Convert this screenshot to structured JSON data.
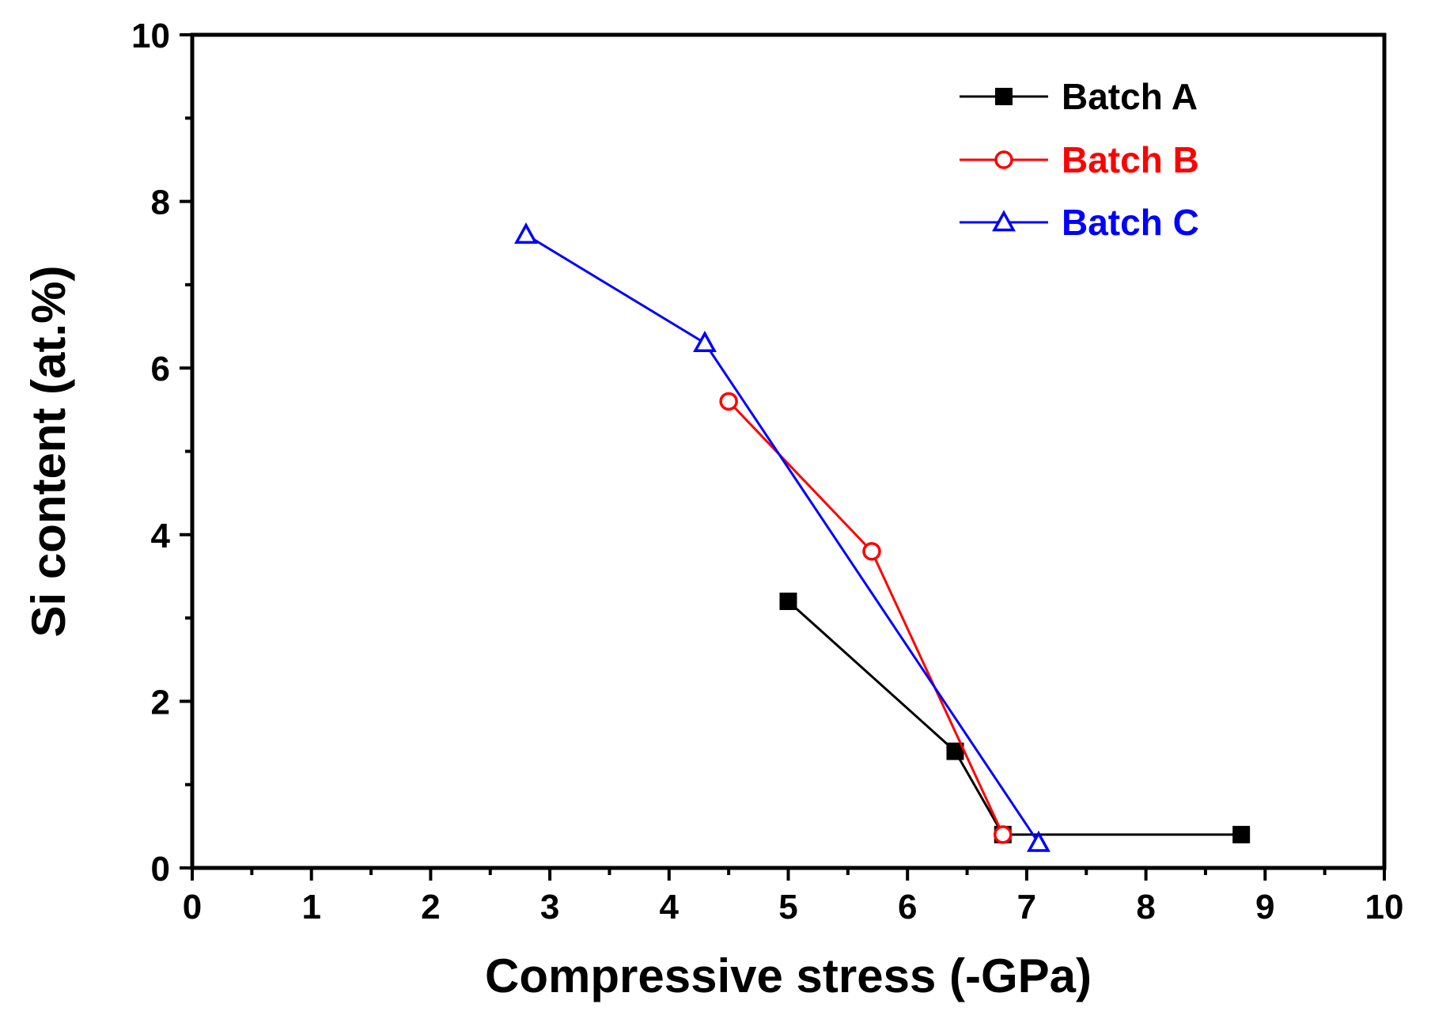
{
  "chart_data": {
    "type": "line",
    "title": "",
    "xlabel": "Compressive stress (-GPa)",
    "ylabel": "Si content (at.%)",
    "xlim": [
      0,
      10
    ],
    "ylim": [
      0,
      10
    ],
    "x_ticks": [
      "0",
      "1",
      "2",
      "3",
      "4",
      "5",
      "6",
      "7",
      "8",
      "9",
      "10"
    ],
    "y_ticks": [
      "0",
      "2",
      "4",
      "6",
      "8",
      "10"
    ],
    "grid": false,
    "legend_position": "top-right",
    "series": [
      {
        "name": "Batch A",
        "color": "#000000",
        "marker": "filled-square",
        "x": [
          5.0,
          6.4,
          6.8,
          8.8
        ],
        "y": [
          3.2,
          1.4,
          0.4,
          0.4
        ]
      },
      {
        "name": "Batch B",
        "color": "#ff0000",
        "marker": "open-circle",
        "x": [
          4.5,
          5.7,
          6.8
        ],
        "y": [
          5.6,
          3.8,
          0.4
        ]
      },
      {
        "name": "Batch C",
        "color": "#0000ff",
        "marker": "open-triangle",
        "x": [
          2.8,
          4.3,
          7.1
        ],
        "y": [
          7.6,
          6.3,
          0.3
        ]
      }
    ]
  }
}
